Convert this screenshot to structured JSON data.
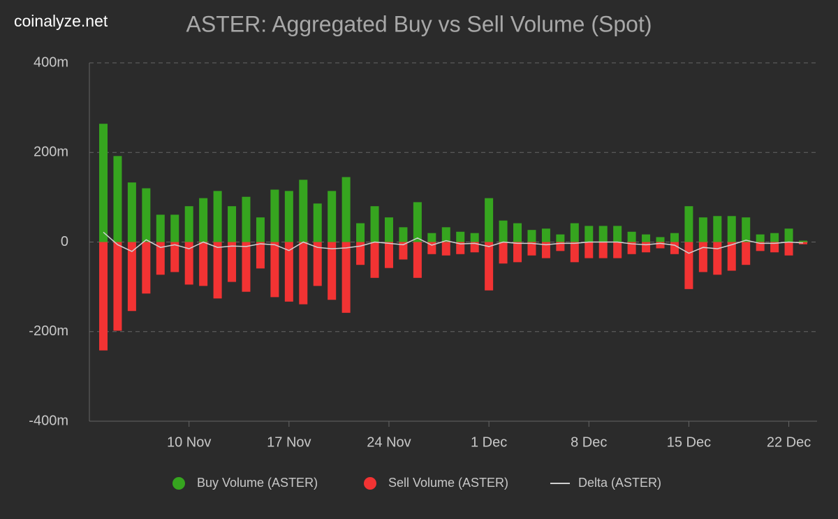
{
  "brand": "coinalyze.net",
  "chart_data": {
    "type": "bar",
    "title": "ASTER: Aggregated Buy vs Sell Volume (Spot)",
    "categories": [
      null,
      null,
      null,
      null,
      null,
      null,
      "10 Nov",
      null,
      null,
      null,
      null,
      null,
      null,
      "17 Nov",
      null,
      null,
      null,
      null,
      null,
      null,
      "24 Nov",
      null,
      null,
      null,
      null,
      null,
      null,
      "1 Dec",
      null,
      null,
      null,
      null,
      null,
      null,
      "8 Dec",
      null,
      null,
      null,
      null,
      null,
      null,
      "15 Dec",
      null,
      null,
      null,
      null,
      null,
      null,
      "22 Dec",
      null
    ],
    "series": [
      {
        "name": "Buy Volume (ASTER)",
        "color": "#36a51f",
        "kind": "bar",
        "values": [
          264,
          192,
          133,
          120,
          61,
          61,
          80,
          98,
          114,
          80,
          101,
          55,
          117,
          114,
          139,
          86,
          114,
          145,
          42,
          80,
          55,
          33,
          89,
          20,
          33,
          23,
          20,
          98,
          48,
          42,
          27,
          30,
          17,
          42,
          36,
          36,
          36,
          23,
          17,
          11,
          20,
          80,
          55,
          58,
          58,
          55,
          17,
          20,
          30,
          3
        ]
      },
      {
        "name": "Sell Volume (ASTER)",
        "color": "#f23333",
        "kind": "bar",
        "values": [
          -242,
          -198,
          -154,
          -115,
          -73,
          -67,
          -95,
          -98,
          -126,
          -89,
          -111,
          -59,
          -123,
          -133,
          -139,
          -98,
          -129,
          -158,
          -51,
          -80,
          -58,
          -39,
          -80,
          -27,
          -30,
          -27,
          -23,
          -108,
          -48,
          -45,
          -30,
          -36,
          -20,
          -45,
          -36,
          -36,
          -36,
          -27,
          -23,
          -14,
          -27,
          -105,
          -67,
          -73,
          -64,
          -51,
          -20,
          -23,
          -30,
          -5
        ]
      },
      {
        "name": "Delta (ASTER)",
        "color": "#d0d0d0",
        "kind": "line",
        "values": [
          22,
          -6,
          -21,
          5,
          -12,
          -6,
          -15,
          0,
          -12,
          -9,
          -10,
          -4,
          -6,
          -19,
          0,
          -12,
          -15,
          -13,
          -9,
          0,
          -3,
          -6,
          9,
          -7,
          3,
          -4,
          -3,
          -10,
          0,
          -3,
          -3,
          -6,
          -3,
          -3,
          0,
          0,
          0,
          -4,
          -6,
          -3,
          -7,
          -25,
          -12,
          -15,
          -6,
          4,
          -3,
          -3,
          0,
          -2
        ]
      }
    ],
    "ylim": [
      -400,
      400
    ],
    "yticks": [
      {
        "value": -400,
        "label": "-400m"
      },
      {
        "value": -200,
        "label": "-200m"
      },
      0,
      {
        "value": 200,
        "label": "200m"
      },
      {
        "value": 400,
        "label": "400m"
      }
    ],
    "grid": true,
    "legend": "bottom"
  }
}
